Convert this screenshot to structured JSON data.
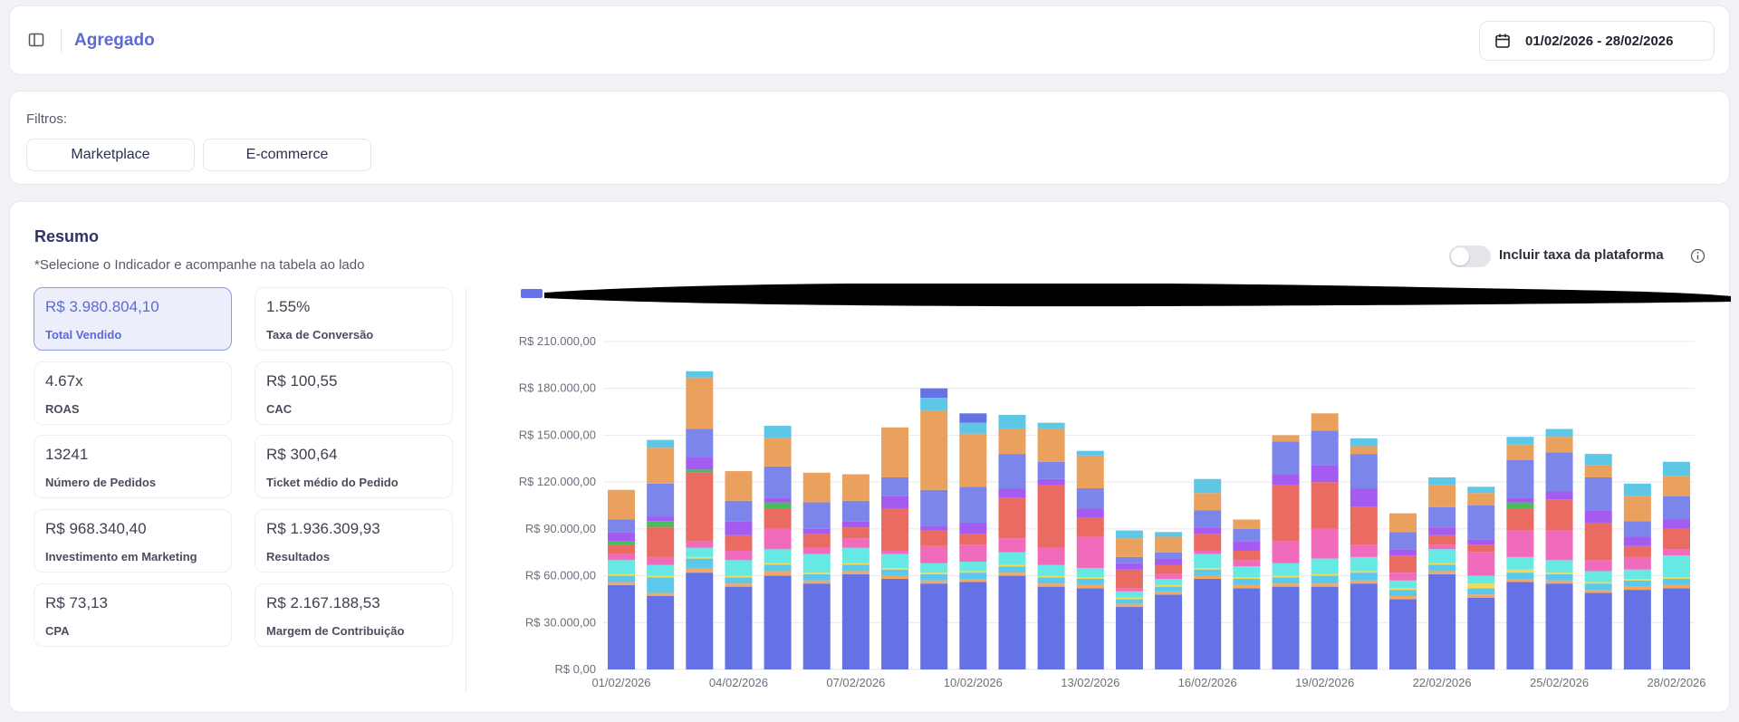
{
  "header": {
    "title": "Agregado",
    "date_range": "01/02/2026 - 28/02/2026"
  },
  "filters": {
    "label": "Filtros:",
    "chips": [
      "Marketplace",
      "E-commerce"
    ]
  },
  "summary": {
    "title": "Resumo",
    "subtitle": "*Selecione o Indicador e acompanhe na tabela ao lado",
    "toggle_label": "Incluir taxa da plataforma",
    "toggle_on": false,
    "kpis": [
      {
        "value": "R$ 3.980.804,10",
        "label": "Total Vendido",
        "active": true
      },
      {
        "value": "1.55%",
        "label": "Taxa de Conversão"
      },
      {
        "value": "4.67x",
        "label": "ROAS"
      },
      {
        "value": "R$ 100,55",
        "label": "CAC"
      },
      {
        "value": "13241",
        "label": "Número de Pedidos"
      },
      {
        "value": "R$ 300,64",
        "label": "Ticket médio do Pedido"
      },
      {
        "value": "R$ 968.340,40",
        "label": "Investimento em Marketing"
      },
      {
        "value": "R$ 1.936.309,93",
        "label": "Resultados"
      },
      {
        "value": "R$ 73,13",
        "label": "CPA"
      },
      {
        "value": "R$ 2.167.188,53",
        "label": "Margem de Contribuição"
      }
    ]
  },
  "colors": {
    "accent": "#5b6ad6",
    "segments": [
      "#6572e6",
      "#f0a864",
      "#5bc8ec",
      "#f5d94e",
      "#66e8e4",
      "#f06bbc",
      "#ea6b62",
      "#4cba5d",
      "#a45cf0",
      "#7b85ea",
      "#eaa15e",
      "#5fc7e6"
    ]
  },
  "chart_data": {
    "type": "bar",
    "stacked": true,
    "legend": "redacted",
    "ylim": [
      0,
      210000
    ],
    "y_ticks": [
      "R$ 0,00",
      "R$ 30.000,00",
      "R$ 60.000,00",
      "R$ 90.000,00",
      "R$ 120.000,00",
      "R$ 150.000,00",
      "R$ 180.000,00",
      "R$ 210.000,00"
    ],
    "x_tick_labels": [
      "01/02/2026",
      "04/02/2026",
      "07/02/2026",
      "10/02/2026",
      "13/02/2026",
      "16/02/2026",
      "19/02/2026",
      "22/02/2026",
      "25/02/2026",
      "28/02/2026"
    ],
    "categories": [
      "01/02/2026",
      "02/02/2026",
      "03/02/2026",
      "04/02/2026",
      "05/02/2026",
      "06/02/2026",
      "07/02/2026",
      "08/02/2026",
      "09/02/2026",
      "10/02/2026",
      "11/02/2026",
      "12/02/2026",
      "13/02/2026",
      "14/02/2026",
      "15/02/2026",
      "16/02/2026",
      "17/02/2026",
      "18/02/2026",
      "19/02/2026",
      "20/02/2026",
      "21/02/2026",
      "22/02/2026",
      "23/02/2026",
      "24/02/2026",
      "25/02/2026",
      "26/02/2026",
      "27/02/2026",
      "28/02/2026"
    ],
    "stacks": [
      [
        54000,
        2000,
        4000,
        1000,
        9000,
        4000,
        6000,
        2000,
        6000,
        8000,
        19000
      ],
      [
        47000,
        2000,
        10000,
        1000,
        7000,
        5000,
        19000,
        4000,
        3000,
        21000,
        23000,
        5000
      ],
      [
        62000,
        3000,
        6000,
        1000,
        6000,
        4000,
        44000,
        2000,
        8000,
        18000,
        33000,
        4000
      ],
      [
        53000,
        2000,
        4000,
        1000,
        10000,
        6000,
        10000,
        0,
        9000,
        13000,
        19000
      ],
      [
        60000,
        3000,
        4000,
        1000,
        9000,
        13000,
        13000,
        4000,
        3000,
        20000,
        18000,
        8000
      ],
      [
        55000,
        2000,
        4000,
        1000,
        12000,
        4000,
        9000,
        0,
        3000,
        17000,
        19000
      ],
      [
        61000,
        2000,
        4000,
        1000,
        10000,
        6000,
        7000,
        0,
        4000,
        13000,
        17000
      ],
      [
        58000,
        2000,
        4000,
        1000,
        9000,
        2000,
        27000,
        0,
        8000,
        12000,
        32000
      ],
      [
        55000,
        2000,
        4000,
        1000,
        6000,
        11000,
        10000,
        0,
        3000,
        23000,
        51000,
        8000,
        6000
      ],
      [
        56000,
        2000,
        4000,
        1000,
        6000,
        11000,
        7000,
        0,
        7000,
        23000,
        34000,
        7000,
        6000
      ],
      [
        60000,
        2000,
        4000,
        1000,
        8000,
        9000,
        26000,
        0,
        6000,
        22000,
        16000,
        9000
      ],
      [
        53000,
        2000,
        4000,
        1000,
        7000,
        11000,
        40000,
        0,
        4000,
        11000,
        21000,
        4000
      ],
      [
        52000,
        2000,
        4000,
        1000,
        6000,
        20000,
        12000,
        0,
        6000,
        13000,
        21000,
        3000
      ],
      [
        40000,
        2000,
        3000,
        1000,
        4000,
        2000,
        12000,
        0,
        4000,
        4000,
        12000,
        5000
      ],
      [
        48000,
        2000,
        3000,
        1000,
        4000,
        3000,
        6000,
        0,
        4000,
        4000,
        10000,
        3000
      ],
      [
        58000,
        2000,
        4000,
        1000,
        9000,
        2000,
        11000,
        0,
        4000,
        11000,
        11000,
        9000
      ],
      [
        52000,
        2000,
        4000,
        1000,
        7000,
        4000,
        6000,
        0,
        6000,
        8000,
        6000
      ],
      [
        53000,
        2000,
        4000,
        1000,
        8000,
        14000,
        36000,
        0,
        7000,
        21000,
        4000
      ],
      [
        53000,
        2000,
        5000,
        1000,
        10000,
        19000,
        30000,
        0,
        11000,
        22000,
        11000
      ],
      [
        55000,
        2000,
        5000,
        1000,
        9000,
        8000,
        24000,
        0,
        12000,
        22000,
        5000,
        5000
      ],
      [
        45000,
        2000,
        4000,
        1000,
        5000,
        5000,
        11000,
        0,
        4000,
        11000,
        12000
      ],
      [
        61000,
        2000,
        4000,
        1000,
        9000,
        3000,
        6000,
        0,
        5000,
        13000,
        14000,
        5000
      ],
      [
        46000,
        2000,
        4000,
        3000,
        5000,
        15000,
        5000,
        0,
        3000,
        22000,
        8000,
        4000
      ],
      [
        56000,
        2000,
        4000,
        2000,
        8000,
        17000,
        14000,
        4000,
        3000,
        24000,
        10000,
        5000
      ],
      [
        55000,
        2000,
        4000,
        1000,
        8000,
        19000,
        20000,
        0,
        5000,
        25000,
        10000,
        5000
      ],
      [
        49000,
        2000,
        4000,
        1000,
        7000,
        7000,
        24000,
        0,
        8000,
        21000,
        8000,
        7000
      ],
      [
        51000,
        2000,
        4000,
        1000,
        6000,
        8000,
        7000,
        0,
        6000,
        10000,
        16000,
        8000
      ],
      [
        52000,
        2000,
        4000,
        1000,
        14000,
        4000,
        13000,
        0,
        6000,
        15000,
        13000,
        9000
      ]
    ]
  }
}
